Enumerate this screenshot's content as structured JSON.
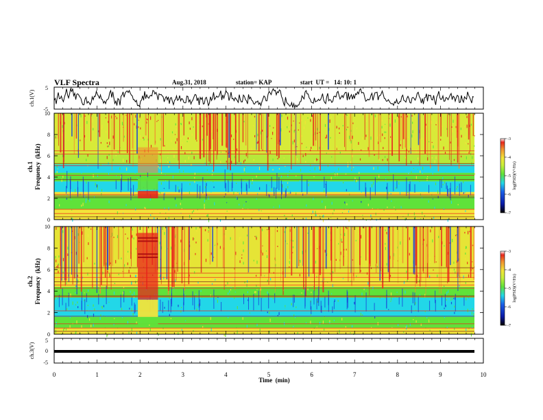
{
  "header": {
    "title": "VLF Spectra",
    "date": "Aug.31, 2018",
    "station": "station= KAP",
    "start_ut": "start  UT =   14: 10: 1"
  },
  "chart_data": [
    {
      "type": "line",
      "panel": "ch1-waveform",
      "ylabel": "ch.1(V)",
      "ylim": [
        -5,
        5
      ],
      "yticks": [
        "5",
        "-5"
      ],
      "xlim": [
        0,
        10
      ],
      "series": [
        {
          "values_note_color": "#000000"
        }
      ]
    },
    {
      "type": "heatmap",
      "panel": "ch1-spectrogram",
      "ylabel_line1": "ch.1",
      "ylabel_line2": "Frequency  (kHz)",
      "ylim": [
        0,
        10
      ],
      "yticks": [
        "0",
        "2",
        "4",
        "6",
        "8",
        "10"
      ],
      "xlim": [
        0,
        9.8
      ],
      "colorbar": {
        "label": "log(PSD)(V²/Hz)",
        "range": [
          -7,
          -3
        ],
        "ticks": [
          "-3",
          "-4",
          "-5",
          "-6",
          "-7"
        ]
      }
    },
    {
      "type": "heatmap",
      "panel": "ch2-spectrogram",
      "ylabel_line1": "ch.2",
      "ylabel_line2": "Frequency  (kHz)",
      "ylim": [
        0,
        10
      ],
      "yticks": [
        "0",
        "2",
        "4",
        "6",
        "8",
        "10"
      ],
      "xlim": [
        0,
        9.8
      ],
      "colorbar": {
        "label": "log(PSD)(V²/Hz)",
        "range": [
          -7,
          -3
        ],
        "ticks": [
          "-3",
          "-4",
          "-5",
          "-6",
          "-7"
        ]
      }
    },
    {
      "type": "line",
      "panel": "ch3-waveform",
      "ylabel": "ch.3(V)",
      "ylim": [
        -5,
        5
      ],
      "yticks": [
        "5",
        "0",
        "-5"
      ],
      "level": 0
    }
  ],
  "xaxis": {
    "label": "Time  (min)",
    "range": [
      0,
      10
    ],
    "ticks": [
      "0",
      "1",
      "2",
      "3",
      "4",
      "5",
      "6",
      "7",
      "8",
      "9",
      "10"
    ]
  },
  "colors": {
    "axis": "#000000",
    "red": "#e8261c",
    "yellow": "#f2e43a",
    "green": "#5fe23a",
    "cyan": "#22d7e8",
    "blue": "#1a3fd8"
  }
}
